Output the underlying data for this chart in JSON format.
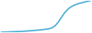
{
  "x": [
    0,
    1,
    2,
    3,
    4,
    5,
    6,
    7,
    8,
    9,
    10,
    11,
    12,
    13,
    14,
    15,
    16,
    17,
    18,
    19,
    20,
    21,
    22,
    23,
    24,
    25,
    26,
    27,
    28,
    29,
    30
  ],
  "y": [
    0.2,
    0.25,
    0.3,
    0.35,
    0.4,
    0.45,
    0.5,
    0.55,
    0.6,
    0.7,
    0.8,
    0.9,
    1.0,
    1.1,
    1.25,
    1.4,
    1.6,
    2.0,
    2.8,
    4.2,
    6.0,
    7.8,
    9.2,
    10.2,
    10.9,
    11.4,
    11.8,
    12.1,
    12.4,
    12.7,
    13.0
  ],
  "line_color": "#4bafd6",
  "line_width": 1.3,
  "background_color": "#ffffff"
}
